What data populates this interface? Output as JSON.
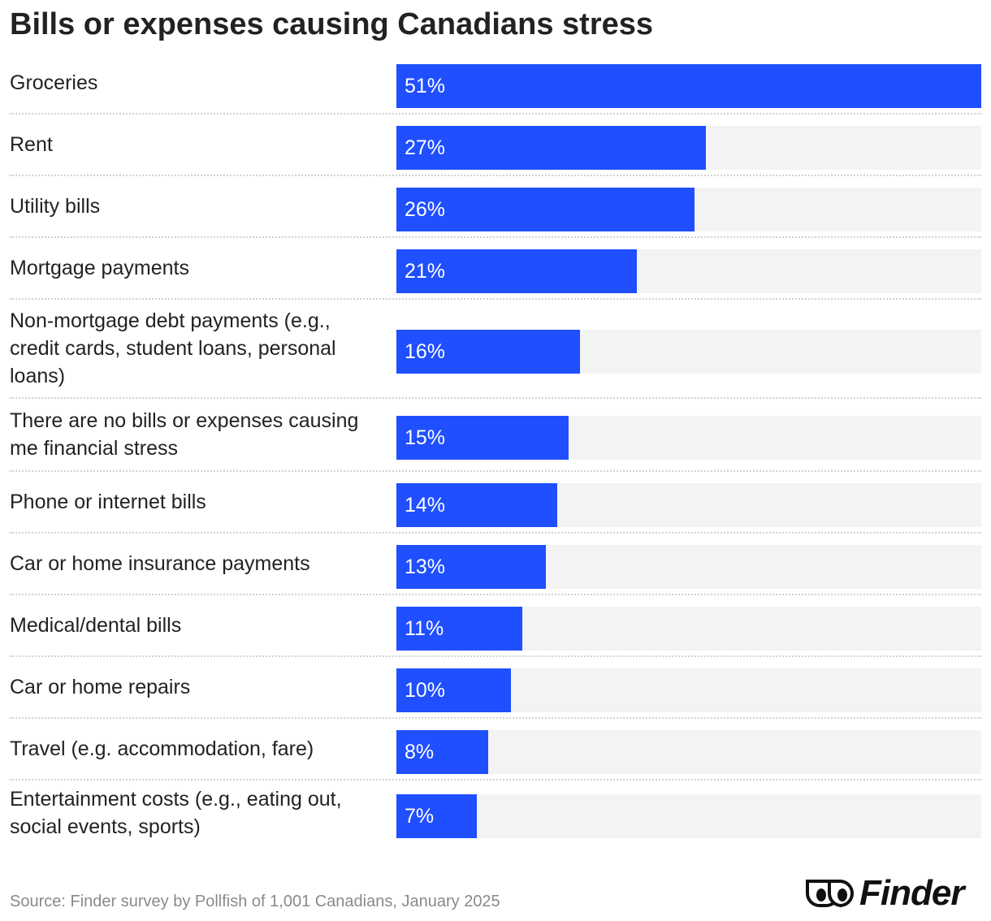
{
  "chart_data": {
    "type": "bar",
    "orientation": "horizontal",
    "title": "Bills or expenses causing Canadians stress",
    "categories": [
      "Groceries",
      "Rent",
      "Utility bills",
      "Mortgage payments",
      "Non-mortgage debt payments (e.g., credit cards, student loans, personal loans)",
      "There are no bills or expenses causing me financial stress",
      "Phone or internet bills",
      "Car or home insurance payments",
      "Medical/dental bills",
      "Car or home repairs",
      "Travel (e.g. accommodation, fare)",
      "Entertainment costs (e.g., eating out, social events, sports)"
    ],
    "values": [
      51,
      27,
      26,
      21,
      16,
      15,
      14,
      13,
      11,
      10,
      8,
      7
    ],
    "value_labels": [
      "51%",
      "27%",
      "26%",
      "21%",
      "16%",
      "15%",
      "14%",
      "13%",
      "11%",
      "10%",
      "8%",
      "7%"
    ],
    "xlim": [
      0,
      51
    ],
    "grid": false,
    "legend": "none",
    "colors": {
      "bar": "#1f4fff",
      "track": "#f3f3f3"
    }
  },
  "footer": {
    "source": "Source: Finder survey by Pollfish of 1,001 Canadians, January 2025",
    "brand": "Finder"
  },
  "icons": {
    "brand_logo": "finder-eyes-icon"
  }
}
